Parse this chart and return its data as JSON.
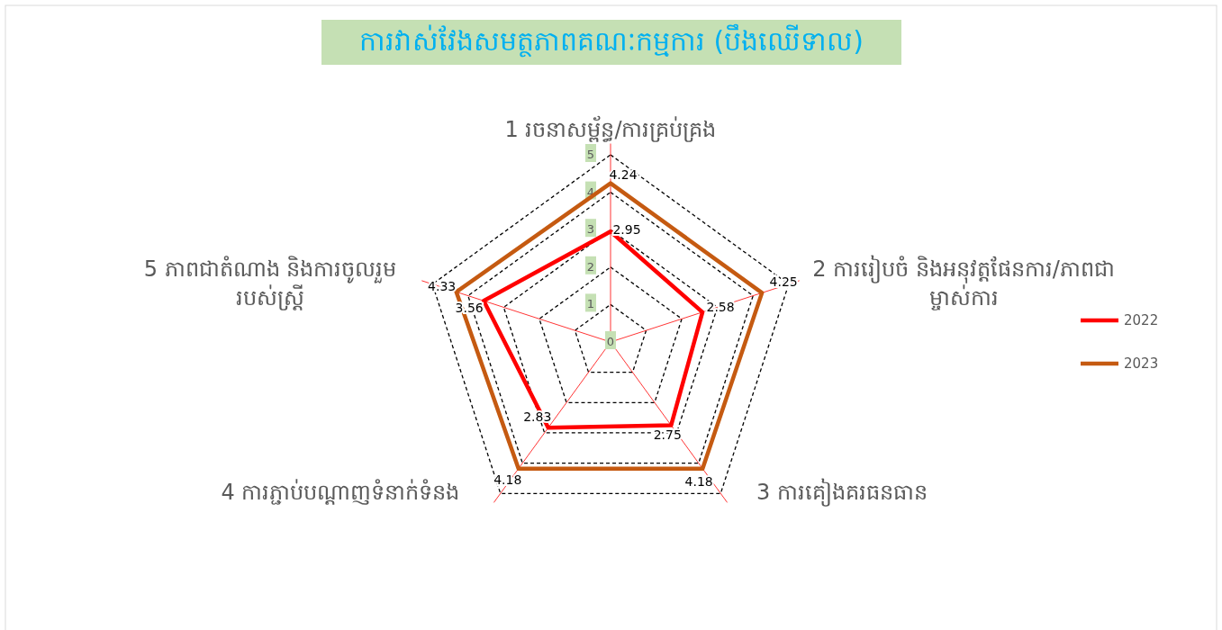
{
  "chart_data": {
    "type": "radar",
    "title": "ការវាស់វែងសមត្ថភាពគណៈកម្មការ (បឹងឈើទាល)",
    "categories": [
      "1 រចនាសម្ព័ន្ធ/ការគ្រប់គ្រង",
      "2 ការរៀបចំ និងអនុវត្តផែនការ/ភាពជាម្ចាស់ការ",
      "3 ការគៀងគរធនធាន",
      "4 ការភ្ជាប់បណ្តាញទំនាក់ទំនង",
      "5 ភាពជាតំណាង និងការចូលរួមរបស់ស្ត្រី"
    ],
    "series": [
      {
        "name": "2022",
        "color": "#ff0000",
        "values": [
          2.95,
          2.58,
          2.75,
          2.83,
          3.56
        ]
      },
      {
        "name": "2023",
        "color": "#c55a11",
        "values": [
          4.24,
          4.25,
          4.18,
          4.18,
          4.33
        ]
      }
    ],
    "ylim": [
      0,
      5
    ],
    "yticks": [
      0,
      1,
      2,
      3,
      4,
      5
    ],
    "grid": true,
    "data_labels": true,
    "legend": "right",
    "marker": "none",
    "line_style": "solid"
  }
}
